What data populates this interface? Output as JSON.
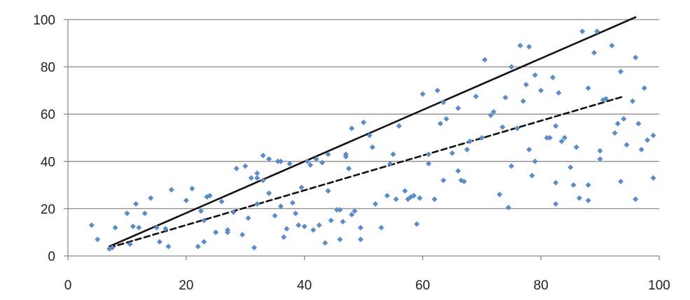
{
  "chart_data": {
    "type": "scatter",
    "title": "",
    "xlabel": "",
    "ylabel": "",
    "xlim": [
      0,
      100
    ],
    "ylim": [
      0,
      100
    ],
    "x_ticks": [
      0,
      20,
      40,
      60,
      80,
      100
    ],
    "y_ticks": [
      0,
      20,
      40,
      60,
      80,
      100
    ],
    "x_tick_labels": [
      "0",
      "20",
      "40",
      "60",
      "80",
      "100"
    ],
    "y_tick_labels": [
      "0",
      "20",
      "40",
      "60",
      "80",
      "100"
    ],
    "grid": "horizontal",
    "legend": "none",
    "marker_color": "#5b8cc8",
    "series": [
      {
        "marker": "diamond",
        "points": [
          [
            4,
            13
          ],
          [
            5,
            7
          ],
          [
            7,
            3
          ],
          [
            7.5,
            3.5
          ],
          [
            8,
            12
          ],
          [
            10,
            18
          ],
          [
            10.5,
            5
          ],
          [
            11,
            12.5
          ],
          [
            11.5,
            22
          ],
          [
            12,
            12
          ],
          [
            13,
            18
          ],
          [
            14,
            24.5
          ],
          [
            15,
            12
          ],
          [
            15.5,
            6
          ],
          [
            16.5,
            11.5
          ],
          [
            17,
            4
          ],
          [
            17.5,
            28
          ],
          [
            20,
            23.5
          ],
          [
            21,
            28.5
          ],
          [
            22,
            4
          ],
          [
            22.5,
            19
          ],
          [
            23,
            15
          ],
          [
            23,
            6
          ],
          [
            23.5,
            25
          ],
          [
            24,
            25.5
          ],
          [
            25,
            10
          ],
          [
            26,
            23
          ],
          [
            27,
            11
          ],
          [
            27,
            10
          ],
          [
            28,
            18.5
          ],
          [
            28.5,
            37
          ],
          [
            29.5,
            9
          ],
          [
            30,
            38
          ],
          [
            30.5,
            16
          ],
          [
            31,
            33
          ],
          [
            31.5,
            3.5
          ],
          [
            32,
            35
          ],
          [
            32,
            33
          ],
          [
            32,
            22
          ],
          [
            33,
            32
          ],
          [
            33,
            42.5
          ],
          [
            34,
            26.5
          ],
          [
            34,
            41
          ],
          [
            35,
            17
          ],
          [
            35.5,
            40
          ],
          [
            36,
            21
          ],
          [
            36,
            40
          ],
          [
            36.5,
            8
          ],
          [
            37,
            11.5
          ],
          [
            37.5,
            39
          ],
          [
            38,
            22.5
          ],
          [
            38.5,
            18
          ],
          [
            39,
            13
          ],
          [
            39.5,
            29
          ],
          [
            40,
            12.5
          ],
          [
            40.5,
            40
          ],
          [
            41,
            38.5
          ],
          [
            41.5,
            11
          ],
          [
            42,
            41
          ],
          [
            42.5,
            13
          ],
          [
            43,
            39.5
          ],
          [
            43.5,
            5.5
          ],
          [
            44,
            27.5
          ],
          [
            44,
            43
          ],
          [
            44.5,
            15
          ],
          [
            45.5,
            19.5
          ],
          [
            46,
            7
          ],
          [
            46,
            19.5
          ],
          [
            46.5,
            14.5
          ],
          [
            47,
            43
          ],
          [
            47,
            42
          ],
          [
            47.5,
            37
          ],
          [
            48,
            17.5
          ],
          [
            48,
            54
          ],
          [
            48.5,
            19
          ],
          [
            49.5,
            12
          ],
          [
            49.5,
            7
          ],
          [
            50,
            56.5
          ],
          [
            51,
            51
          ],
          [
            51.5,
            46
          ],
          [
            52,
            22
          ],
          [
            53,
            12
          ],
          [
            54,
            25.5
          ],
          [
            54.5,
            39
          ],
          [
            55,
            43
          ],
          [
            55.5,
            24
          ],
          [
            56,
            55
          ],
          [
            57,
            27.5
          ],
          [
            57.5,
            24
          ],
          [
            58,
            25
          ],
          [
            58.5,
            25.5
          ],
          [
            59,
            13.5
          ],
          [
            59.5,
            24.5
          ],
          [
            60,
            68.5
          ],
          [
            61,
            39
          ],
          [
            61,
            43
          ],
          [
            62,
            24
          ],
          [
            62.5,
            70
          ],
          [
            63,
            56
          ],
          [
            63.5,
            65
          ],
          [
            63.5,
            32
          ],
          [
            64,
            58
          ],
          [
            65,
            43.5
          ],
          [
            66,
            62.5
          ],
          [
            66,
            36
          ],
          [
            66.5,
            32
          ],
          [
            67,
            31.5
          ],
          [
            67.5,
            45
          ],
          [
            68,
            48.5
          ],
          [
            69,
            67.5
          ],
          [
            70,
            50
          ],
          [
            70.5,
            83
          ],
          [
            71.5,
            59.5
          ],
          [
            72,
            61
          ],
          [
            73,
            26
          ],
          [
            73.5,
            54.5
          ],
          [
            74,
            67
          ],
          [
            74.5,
            20.5
          ],
          [
            75,
            38
          ],
          [
            75,
            80
          ],
          [
            76,
            54
          ],
          [
            76.5,
            89
          ],
          [
            77,
            65.5
          ],
          [
            77.5,
            72.5
          ],
          [
            78,
            88.5
          ],
          [
            78,
            45
          ],
          [
            78.5,
            34
          ],
          [
            79,
            40
          ],
          [
            79,
            76.5
          ],
          [
            80,
            70
          ],
          [
            81,
            50
          ],
          [
            81.5,
            50
          ],
          [
            82,
            75.5
          ],
          [
            82.5,
            55
          ],
          [
            82.5,
            31
          ],
          [
            82.5,
            22
          ],
          [
            83,
            69
          ],
          [
            83.5,
            48.5
          ],
          [
            84,
            50
          ],
          [
            85,
            37.5
          ],
          [
            85.5,
            30
          ],
          [
            86,
            46
          ],
          [
            86.5,
            24.5
          ],
          [
            87,
            95
          ],
          [
            88,
            23.5
          ],
          [
            88,
            30
          ],
          [
            88,
            71
          ],
          [
            89,
            86
          ],
          [
            89.5,
            95
          ],
          [
            90,
            44.5
          ],
          [
            90,
            41
          ],
          [
            90.5,
            66
          ],
          [
            91,
            66.5
          ],
          [
            92,
            89
          ],
          [
            92.5,
            52
          ],
          [
            93,
            56
          ],
          [
            93.5,
            78
          ],
          [
            93.5,
            31.5
          ],
          [
            94,
            58
          ],
          [
            94.5,
            47
          ],
          [
            95.5,
            65.5
          ],
          [
            96,
            24
          ],
          [
            96,
            84
          ],
          [
            96.5,
            56
          ],
          [
            97,
            45
          ],
          [
            97.5,
            71
          ],
          [
            98,
            49
          ],
          [
            99,
            51
          ],
          [
            99,
            33
          ]
        ]
      }
    ],
    "trendlines": [
      {
        "style": "solid",
        "color": "#111111",
        "x": [
          7,
          96
        ],
        "y": [
          4,
          101
        ]
      },
      {
        "style": "dashed",
        "color": "#111111",
        "x": [
          7,
          94
        ],
        "y": [
          3.5,
          67.5
        ]
      }
    ]
  }
}
